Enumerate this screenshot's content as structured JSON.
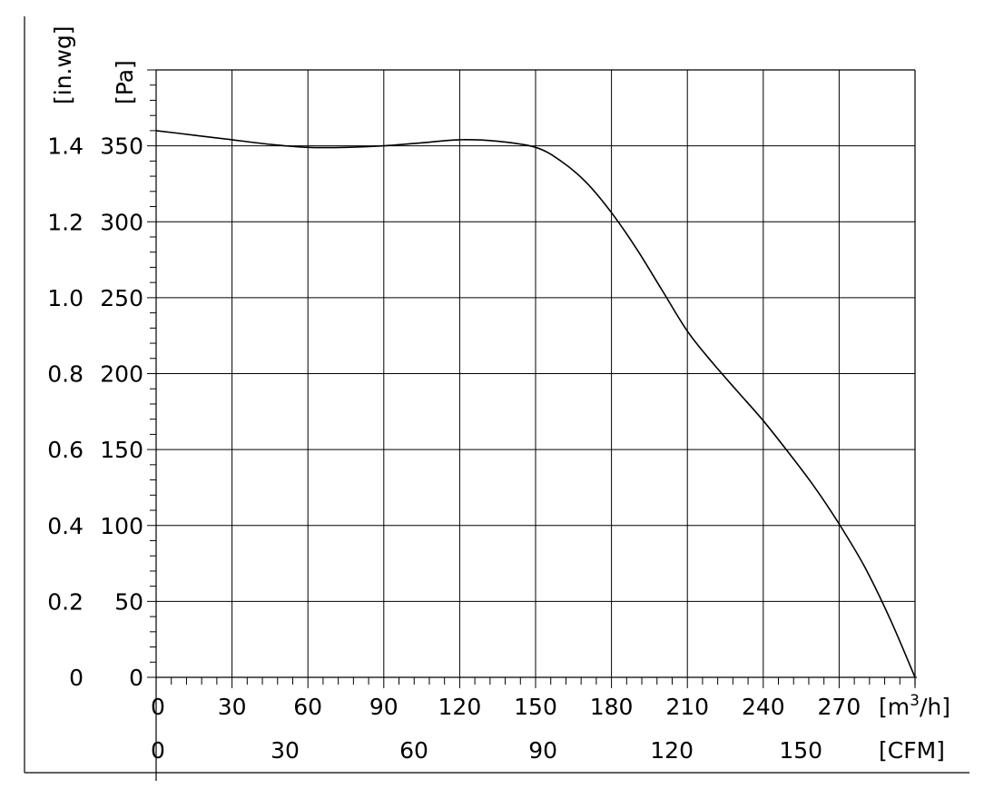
{
  "chart_data": {
    "type": "line",
    "xlabel_primary": "[m³/h]",
    "xlabel_primary_base": "[m",
    "xlabel_primary_sup": "3",
    "xlabel_primary_tail": "/h]",
    "xlabel_secondary": "[CFM]",
    "ylabel_primary": "[Pa]",
    "ylabel_secondary": "[in.wg]",
    "xlim": [
      0,
      300
    ],
    "ylim": [
      0,
      400
    ],
    "grid": true,
    "x_ticks": [
      "0",
      "30",
      "60",
      "90",
      "120",
      "150",
      "180",
      "210",
      "240",
      "270"
    ],
    "x_tick_values": [
      0,
      30,
      60,
      90,
      120,
      150,
      180,
      210,
      240,
      270
    ],
    "x2_ticks": [
      "0",
      "30",
      "60",
      "90",
      "120",
      "150"
    ],
    "x2_tick_values": [
      0,
      30,
      60,
      90,
      120,
      150
    ],
    "x2_to_x_factor": 1.699,
    "y_ticks": [
      "0",
      "50",
      "100",
      "150",
      "200",
      "250",
      "300",
      "350"
    ],
    "y_tick_values": [
      0,
      50,
      100,
      150,
      200,
      250,
      300,
      350
    ],
    "y2_ticks": [
      "0",
      "0.2",
      "0.4",
      "0.6",
      "0.8",
      "1.0",
      "1.2",
      "1.4"
    ],
    "y2_tick_values": [
      0,
      50,
      100,
      150,
      200,
      250,
      300,
      350
    ],
    "series": [
      {
        "x": [
          0,
          15,
          30,
          45,
          60,
          75,
          90,
          105,
          120,
          135,
          150,
          160,
          170,
          180,
          190,
          200,
          210,
          220,
          230,
          240,
          250,
          260,
          270,
          280,
          290,
          300
        ],
        "y": [
          360,
          357,
          354,
          351,
          349,
          349,
          350,
          352,
          354,
          353,
          349,
          340,
          326,
          306,
          282,
          255,
          228,
          207,
          188,
          169,
          148,
          126,
          101,
          73,
          39,
          0
        ]
      }
    ]
  }
}
